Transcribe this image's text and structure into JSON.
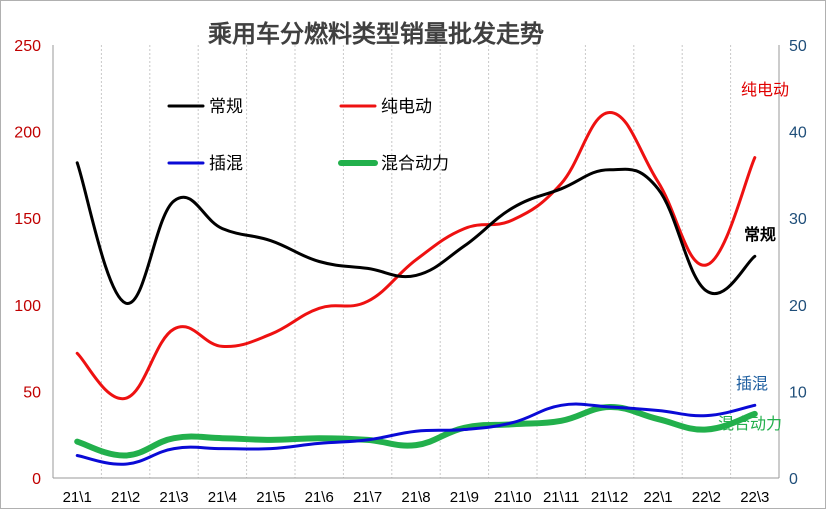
{
  "chart_data": {
    "type": "line",
    "title": "乘用车分燃料类型销量批发走势",
    "categories": [
      "21\\1",
      "21\\2",
      "21\\3",
      "21\\4",
      "21\\5",
      "21\\6",
      "21\\7",
      "21\\8",
      "21\\9",
      "21\\10",
      "21\\11",
      "21\\12",
      "22\\1",
      "22\\2",
      "22\\3"
    ],
    "y_left": {
      "min": 0,
      "max": 250,
      "ticks": [
        0,
        50,
        100,
        150,
        200,
        250
      ],
      "color": "#c00000"
    },
    "y_right": {
      "min": 0,
      "max": 50,
      "ticks": [
        0,
        10,
        20,
        30,
        40,
        50
      ],
      "color": "#1f4e79"
    },
    "grid": "vertical-dashed",
    "legend_placement": "top-left",
    "series": [
      {
        "name": "常规",
        "color": "#000000",
        "width": 3,
        "end_label": "常规",
        "end_label_color": "#000000",
        "values": [
          182,
          101,
          160,
          144,
          137,
          125,
          121,
          117,
          134,
          156,
          167,
          178,
          167,
          108,
          128
        ]
      },
      {
        "name": "纯电动",
        "color": "#ee1111",
        "width": 3,
        "end_label": "纯电动",
        "end_label_color": "#e00000",
        "values": [
          72,
          46,
          86,
          76,
          83,
          98,
          102,
          126,
          144,
          149,
          170,
          211,
          171,
          123,
          185
        ]
      },
      {
        "name": "插混",
        "color": "#0a0ad6",
        "width": 3,
        "end_label": "插混",
        "end_label_color": "#1f5fa0",
        "values": [
          13,
          8,
          17,
          17,
          17,
          20,
          22,
          27,
          28,
          32,
          42,
          41,
          39,
          36,
          42
        ]
      },
      {
        "name": "混合动力",
        "color": "#22b04c",
        "width": 6,
        "end_label": "混合动力",
        "end_label_color": "#22b04c",
        "values": [
          21,
          13,
          23,
          23,
          22,
          23,
          22,
          19,
          29,
          31,
          33,
          41,
          34,
          28,
          37
        ]
      }
    ]
  }
}
